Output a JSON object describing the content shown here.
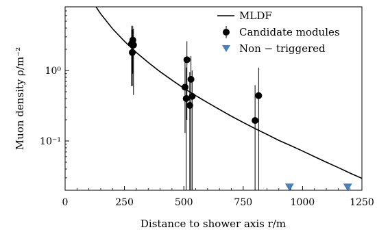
{
  "chart_data": {
    "type": "scatter",
    "xlabel": "Distance to shower axis r/m",
    "ylabel": "Muon density ρ/m⁻²",
    "xlim": [
      0,
      1250
    ],
    "ylim": [
      0.02,
      8
    ],
    "yscale": "log",
    "grid": false,
    "legend_position": "top-right",
    "x_ticks": [
      0,
      250,
      500,
      750,
      1000,
      1250
    ],
    "x_tick_labels": [
      "0",
      "250",
      "500",
      "750",
      "1000",
      "1250"
    ],
    "y_ticks": [
      0.1,
      1
    ],
    "y_tick_labels": [
      "10⁻¹",
      "10⁰"
    ],
    "series": [
      {
        "name": "MLDF",
        "kind": "line",
        "color": "#000000",
        "x": [
          130,
          150,
          200,
          250,
          300,
          350,
          400,
          450,
          500,
          550,
          600,
          650,
          700,
          750,
          800,
          850,
          900,
          950,
          1000,
          1050,
          1100,
          1150,
          1200,
          1250
        ],
        "y": [
          8.0,
          6.35,
          3.9,
          2.6,
          1.8,
          1.3,
          0.96,
          0.73,
          0.56,
          0.44,
          0.35,
          0.28,
          0.225,
          0.183,
          0.15,
          0.124,
          0.102,
          0.086,
          0.072,
          0.06,
          0.05,
          0.042,
          0.035,
          0.0295
        ]
      },
      {
        "name": "Candidate modules",
        "kind": "errorbar",
        "color": "#000000",
        "points": [
          {
            "x": 280,
            "y": 2.4,
            "ylow": 0.6,
            "yhigh": 4.3
          },
          {
            "x": 283,
            "y": 1.8,
            "ylow": 0.6,
            "yhigh": 3.8
          },
          {
            "x": 285,
            "y": 2.7,
            "ylow": 0.9,
            "yhigh": 4.3
          },
          {
            "x": 288,
            "y": 2.3,
            "ylow": 0.45,
            "yhigh": 3.9
          },
          {
            "x": 505,
            "y": 0.58,
            "ylow": 0.13,
            "yhigh": 1.4
          },
          {
            "x": 510,
            "y": 0.4,
            "ylow": 0.02,
            "yhigh": 1.1
          },
          {
            "x": 513,
            "y": 1.42,
            "ylow": 0.2,
            "yhigh": 2.6
          },
          {
            "x": 525,
            "y": 0.32,
            "ylow": 0.02,
            "yhigh": 0.95
          },
          {
            "x": 530,
            "y": 0.75,
            "ylow": 0.02,
            "yhigh": 1.6
          },
          {
            "x": 535,
            "y": 0.43,
            "ylow": 0.02,
            "yhigh": 1.0
          },
          {
            "x": 800,
            "y": 0.195,
            "ylow": 0.02,
            "yhigh": 0.62
          },
          {
            "x": 815,
            "y": 0.44,
            "ylow": 0.02,
            "yhigh": 1.1
          }
        ]
      },
      {
        "name": "Non − triggered",
        "kind": "triangle",
        "color": "#4b7fb5",
        "x": [
          945,
          1190
        ],
        "y": [
          0.022,
          0.022
        ]
      }
    ]
  }
}
